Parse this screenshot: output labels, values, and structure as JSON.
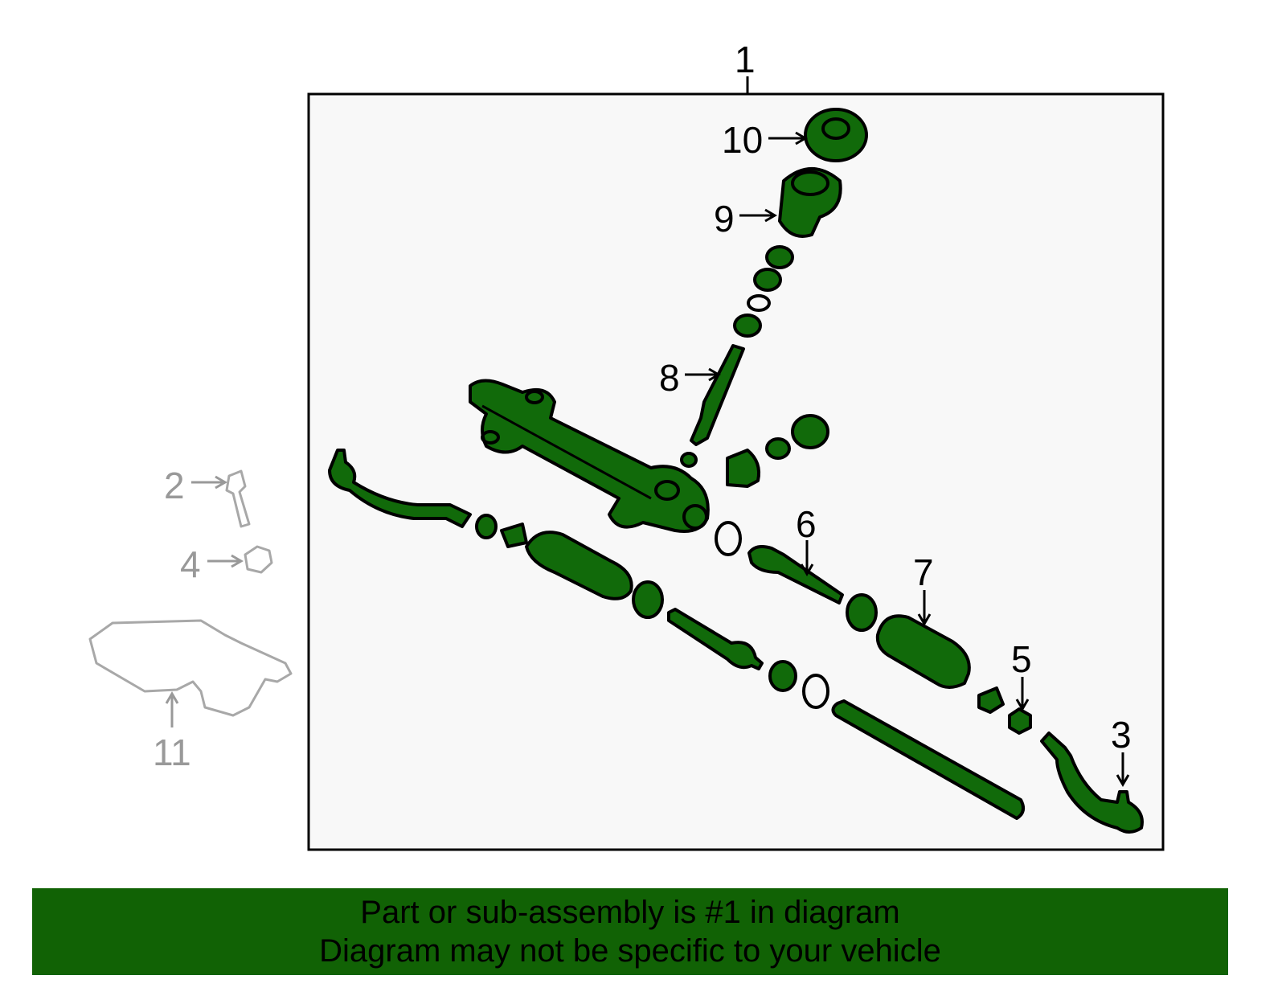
{
  "callouts": {
    "c1": "1",
    "c2": "2",
    "c3": "3",
    "c4": "4",
    "c5": "5",
    "c6": "6",
    "c7": "7",
    "c8": "8",
    "c9": "9",
    "c10": "10",
    "c11": "11"
  },
  "colors": {
    "part_fill": "#116a0a",
    "banner": "#116205",
    "box_fill": "#f8f8f8",
    "unrelated_part": "#a8a8a8"
  },
  "banner": {
    "line1": "Part or sub-assembly is #1 in diagram",
    "line2": "Diagram may not be specific to your vehicle"
  }
}
